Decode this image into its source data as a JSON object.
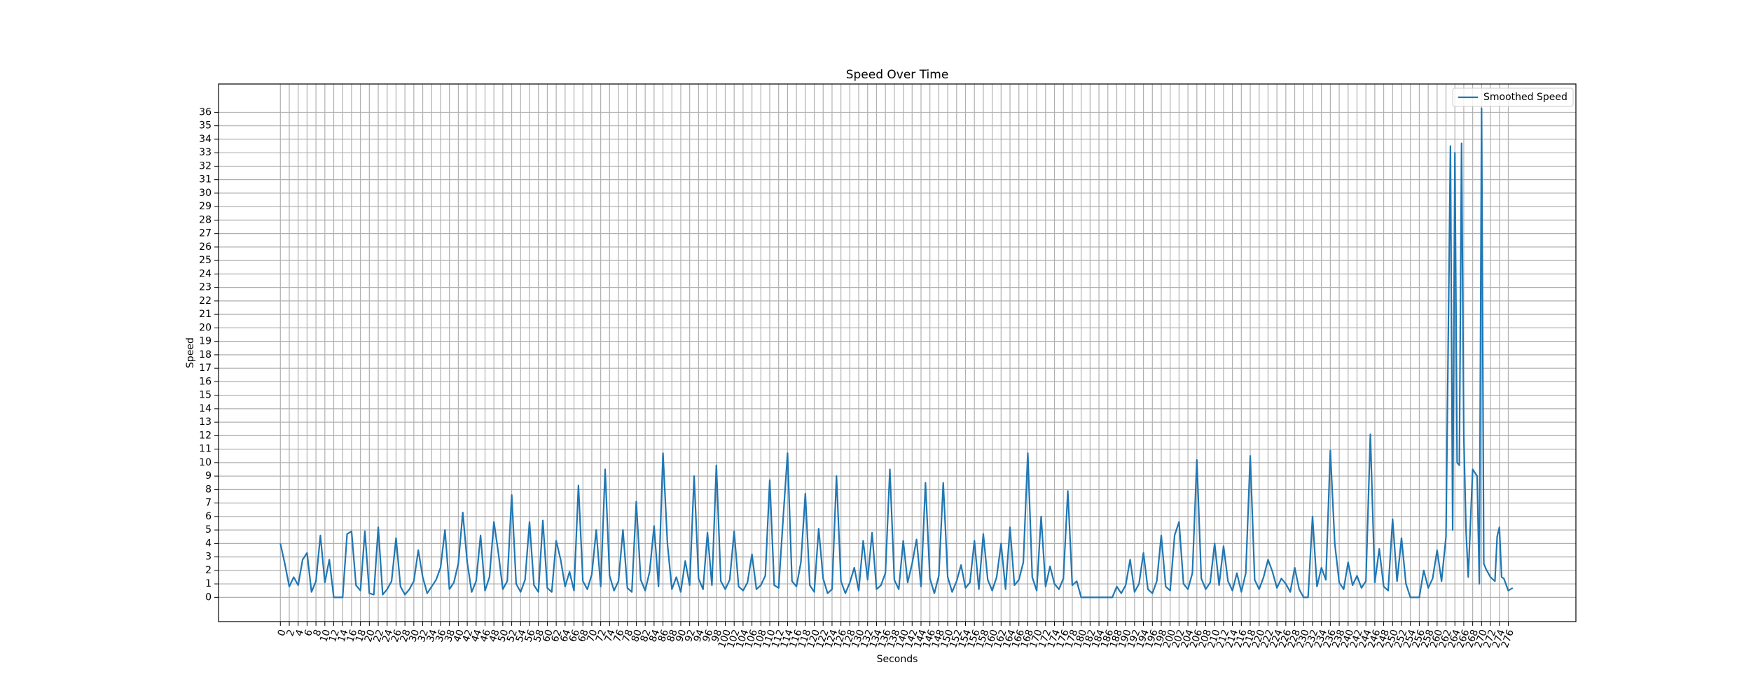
{
  "chart_data": {
    "type": "line",
    "title": "Speed Over Time",
    "xlabel": "Seconds",
    "ylabel": "Speed",
    "x": [
      0,
      1,
      2,
      3,
      4,
      5,
      6,
      7,
      8,
      9,
      10,
      11,
      12,
      13,
      14,
      15,
      16,
      17,
      18,
      19,
      20,
      21,
      22,
      23,
      24,
      25,
      26,
      27,
      28,
      29,
      30,
      31,
      32,
      33,
      34,
      35,
      36,
      37,
      38,
      39,
      40,
      41,
      42,
      43,
      44,
      45,
      46,
      47,
      48,
      49,
      50,
      51,
      52,
      53,
      54,
      55,
      56,
      57,
      58,
      59,
      60,
      61,
      62,
      63,
      64,
      65,
      66,
      67,
      68,
      69,
      70,
      71,
      72,
      73,
      74,
      75,
      76,
      77,
      78,
      79,
      80,
      81,
      82,
      83,
      84,
      85,
      86,
      87,
      88,
      89,
      90,
      91,
      92,
      93,
      94,
      95,
      96,
      97,
      98,
      99,
      100,
      101,
      102,
      103,
      104,
      105,
      106,
      107,
      108,
      109,
      110,
      111,
      112,
      113,
      114,
      115,
      116,
      117,
      118,
      119,
      120,
      121,
      122,
      123,
      124,
      125,
      126,
      127,
      128,
      129,
      130,
      131,
      132,
      133,
      134,
      135,
      136,
      137,
      138,
      139,
      140,
      141,
      142,
      143,
      144,
      145,
      146,
      147,
      148,
      149,
      150,
      151,
      152,
      153,
      154,
      155,
      156,
      157,
      158,
      159,
      160,
      161,
      162,
      163,
      164,
      165,
      166,
      167,
      168,
      169,
      170,
      171,
      172,
      173,
      174,
      175,
      176,
      177,
      178,
      179,
      180,
      181,
      182,
      183,
      184,
      185,
      186,
      187,
      188,
      189,
      190,
      191,
      192,
      193,
      194,
      195,
      196,
      197,
      198,
      199,
      200,
      201,
      202,
      203,
      204,
      205,
      206,
      207,
      208,
      209,
      210,
      211,
      212,
      213,
      214,
      215,
      216,
      217,
      218,
      219,
      220,
      221,
      222,
      223,
      224,
      225,
      226,
      227,
      228,
      229,
      230,
      231,
      232,
      233,
      234,
      235,
      236,
      237,
      238,
      239,
      240,
      241,
      242,
      243,
      244,
      245,
      246,
      247,
      248,
      249,
      250,
      251,
      252,
      253,
      254,
      255,
      256,
      257,
      258,
      259,
      260,
      261,
      262,
      263,
      263.5,
      264,
      264.5,
      265,
      265.5,
      266,
      266.5,
      267,
      268,
      269,
      269.5,
      270,
      270.5,
      271,
      272,
      273,
      273.5,
      274,
      274.5,
      275,
      276,
      277
    ],
    "series": [
      {
        "name": "Smoothed Speed",
        "color": "#1f77b4",
        "values": [
          4,
          2.5,
          0.8,
          1.5,
          0.9,
          2.8,
          3.3,
          0.4,
          1.2,
          4.6,
          1.1,
          2.8,
          0,
          0,
          0,
          4.7,
          4.9,
          0.9,
          0.5,
          4.9,
          0.3,
          0.2,
          5.2,
          0.2,
          0.6,
          1.2,
          4.4,
          0.8,
          0.2,
          0.6,
          1.2,
          3.5,
          1.5,
          0.3,
          0.8,
          1.3,
          2.2,
          5,
          0.6,
          1.1,
          2.5,
          6.3,
          2.6,
          0.4,
          1.2,
          4.6,
          0.5,
          1.5,
          5.6,
          3.3,
          0.6,
          1.2,
          7.6,
          1,
          0.4,
          1.3,
          5.6,
          0.9,
          0.4,
          5.7,
          0.7,
          0.4,
          4.2,
          2.8,
          0.8,
          1.9,
          0.5,
          8.3,
          1.2,
          0.6,
          1.7,
          5,
          0.8,
          9.5,
          1.6,
          0.5,
          1.2,
          5,
          0.7,
          0.4,
          7.1,
          1.3,
          0.5,
          1.9,
          5.3,
          0.8,
          10.7,
          4,
          0.6,
          1.5,
          0.4,
          2.7,
          0.9,
          9,
          1.4,
          0.6,
          4.8,
          0.9,
          9.8,
          1.2,
          0.6,
          1.3,
          4.9,
          0.8,
          0.5,
          1.1,
          3.2,
          0.6,
          0.9,
          1.6,
          8.7,
          0.9,
          0.7,
          5.8,
          10.7,
          1.2,
          0.8,
          2.6,
          7.7,
          0.9,
          0.4,
          5.1,
          1.4,
          0.3,
          0.6,
          9,
          1.2,
          0.3,
          1.1,
          2.2,
          0.5,
          4.2,
          1.3,
          4.8,
          0.6,
          0.9,
          1.8,
          9.5,
          1.3,
          0.6,
          4.2,
          1.1,
          2.5,
          4.3,
          0.8,
          8.5,
          1.4,
          0.3,
          1.6,
          8.5,
          1.5,
          0.4,
          1.2,
          2.4,
          0.7,
          1.1,
          4.2,
          0.6,
          4.7,
          1.3,
          0.5,
          1.5,
          4,
          0.6,
          5.2,
          0.9,
          1.3,
          2.6,
          10.7,
          1.5,
          0.5,
          6,
          0.8,
          2.3,
          1,
          0.6,
          1.4,
          7.9,
          0.9,
          1.2,
          0,
          0,
          0,
          0,
          0,
          0,
          0,
          0,
          0.8,
          0.3,
          0.9,
          2.8,
          0.4,
          1,
          3.3,
          0.6,
          0.3,
          1.2,
          4.6,
          0.8,
          0.5,
          4.6,
          5.6,
          1,
          0.6,
          1.8,
          10.2,
          1.4,
          0.6,
          1.1,
          4,
          0.9,
          3.8,
          1.2,
          0.5,
          1.8,
          0.4,
          1.8,
          10.5,
          1.3,
          0.6,
          1.5,
          2.8,
          1.9,
          0.7,
          1.4,
          1,
          0.4,
          2.2,
          0.6,
          0,
          0,
          6,
          0.8,
          2.2,
          1.3,
          10.9,
          4,
          1.1,
          0.6,
          2.6,
          0.9,
          1.6,
          0.7,
          1.2,
          12.1,
          1.1,
          3.6,
          0.8,
          0.5,
          5.8,
          1.2,
          4.4,
          1,
          0,
          0,
          0,
          2,
          0.7,
          1.4,
          3.5,
          1.2,
          4.5,
          33.5,
          5,
          33,
          10,
          9.8,
          33.7,
          12,
          5,
          1.5,
          9.5,
          9,
          1,
          36.3,
          2.5,
          2.1,
          1.5,
          1.2,
          4.5,
          5.2,
          1.5,
          1.4,
          0.5,
          0.7
        ]
      }
    ],
    "xlim": [
      -13.9,
      291.2
    ],
    "ylim": [
      -1.8,
      38.1
    ],
    "xticks": [
      0,
      2,
      4,
      6,
      8,
      10,
      12,
      14,
      16,
      18,
      20,
      22,
      24,
      26,
      28,
      30,
      32,
      34,
      36,
      38,
      40,
      42,
      44,
      46,
      48,
      50,
      52,
      54,
      56,
      58,
      60,
      62,
      64,
      66,
      68,
      70,
      72,
      74,
      76,
      78,
      80,
      82,
      84,
      86,
      88,
      90,
      92,
      94,
      96,
      98,
      100,
      102,
      104,
      106,
      108,
      110,
      112,
      114,
      116,
      118,
      120,
      122,
      124,
      126,
      128,
      130,
      132,
      134,
      136,
      138,
      140,
      142,
      144,
      146,
      148,
      150,
      152,
      154,
      156,
      158,
      160,
      162,
      164,
      166,
      168,
      170,
      172,
      174,
      176,
      178,
      180,
      182,
      184,
      186,
      188,
      190,
      192,
      194,
      196,
      198,
      200,
      202,
      204,
      206,
      208,
      210,
      212,
      214,
      216,
      218,
      220,
      222,
      224,
      226,
      228,
      230,
      232,
      234,
      236,
      238,
      240,
      242,
      244,
      246,
      248,
      250,
      252,
      254,
      256,
      258,
      260,
      262,
      264,
      266,
      268,
      270,
      272,
      274,
      276
    ],
    "yticks": [
      0,
      1,
      2,
      3,
      4,
      5,
      6,
      7,
      8,
      9,
      10,
      11,
      12,
      13,
      14,
      15,
      16,
      17,
      18,
      19,
      20,
      21,
      22,
      23,
      24,
      25,
      26,
      27,
      28,
      29,
      30,
      31,
      32,
      33,
      34,
      35,
      36
    ],
    "grid": true,
    "legend": "upper right"
  }
}
